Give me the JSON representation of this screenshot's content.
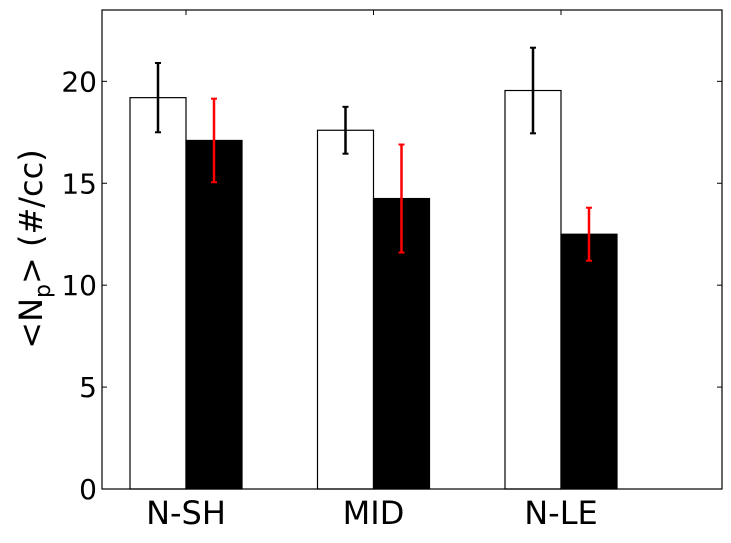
{
  "chart_data": {
    "type": "bar",
    "categories": [
      "N-SH",
      "MID",
      "N-LE"
    ],
    "series": [
      {
        "values": [
          19.2,
          17.6,
          19.55
        ],
        "error": [
          1.7,
          1.15,
          2.1
        ],
        "fill": "#ffffff",
        "edge": "#000000",
        "error_color": "#000000"
      },
      {
        "values": [
          17.1,
          14.25,
          12.5
        ],
        "error": [
          2.05,
          2.65,
          1.3
        ],
        "fill": "#000000",
        "edge": "#000000",
        "error_color": "#ff0000"
      }
    ],
    "ylabel_main": "<N",
    "ylabel_sub": "p",
    "ylabel_tail": "> (#/cc)",
    "ylim": [
      0,
      23.5
    ],
    "yticks": [
      "0",
      "5",
      "10",
      "15",
      "20"
    ],
    "grid": false,
    "legend": "none"
  }
}
